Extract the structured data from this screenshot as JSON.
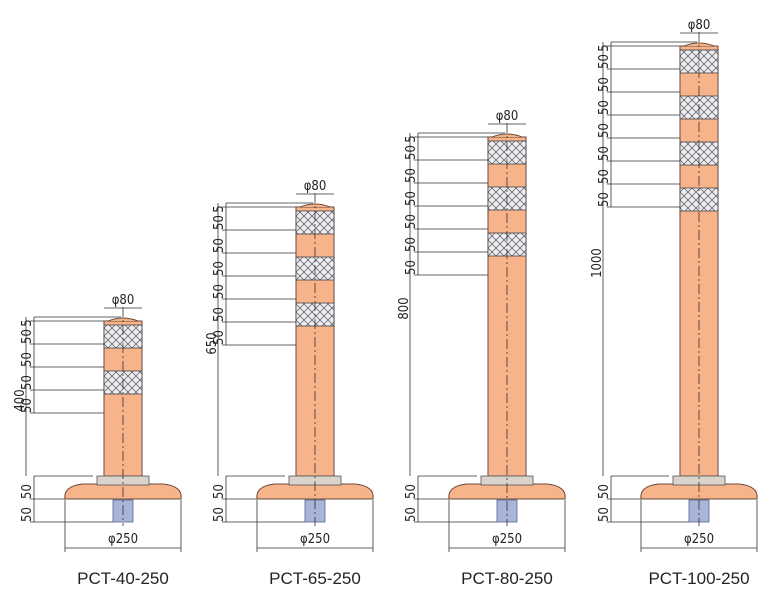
{
  "colors": {
    "post_body": "#f7b48a",
    "reflective_band": "#e9e9ef",
    "anchor": "#a8b4d8",
    "outline": "#333333"
  },
  "products": [
    {
      "model": "PCT-40-250",
      "total_height": "400",
      "top_dims": [
        "5",
        "50",
        "50",
        "50",
        "50"
      ],
      "base_dims": [
        "50",
        "50"
      ],
      "diameter_top": "φ80",
      "diameter_base": "φ250",
      "bands": 2
    },
    {
      "model": "PCT-65-250",
      "total_height": "650",
      "top_dims": [
        "5",
        "50",
        "50",
        "50",
        "50",
        "50",
        "50"
      ],
      "base_dims": [
        "50",
        "50"
      ],
      "diameter_top": "φ80",
      "diameter_base": "φ250",
      "bands": 3
    },
    {
      "model": "PCT-80-250",
      "total_height": "800",
      "top_dims": [
        "5",
        "50",
        "50",
        "50",
        "50",
        "50",
        "50"
      ],
      "base_dims": [
        "50",
        "50"
      ],
      "diameter_top": "φ80",
      "diameter_base": "φ250",
      "bands": 3
    },
    {
      "model": "PCT-100-250",
      "total_height": "1000",
      "top_dims": [
        "5",
        "50",
        "50",
        "50",
        "50",
        "50",
        "50",
        "50"
      ],
      "base_dims": [
        "50",
        "50"
      ],
      "diameter_top": "φ80",
      "diameter_base": "φ250",
      "bands": 4
    }
  ]
}
